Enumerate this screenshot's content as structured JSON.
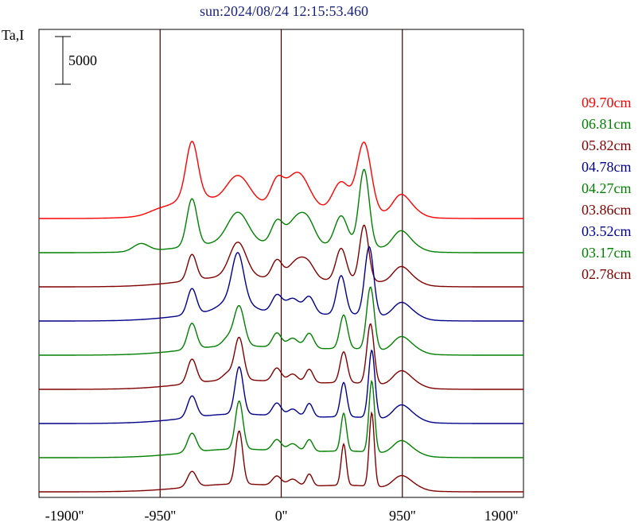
{
  "chart_data": {
    "type": "line",
    "title": "sun:2024/08/24 12:15:53.460",
    "ylabel": "Ta,I",
    "scale_bar_label": "5000",
    "x_tick_labels": [
      "-1900''",
      "-950''",
      "0''",
      "950''",
      "1900''"
    ],
    "x_ticks": [
      -1900,
      -950,
      0,
      950,
      1900
    ],
    "xlim": [
      -1900,
      1900
    ],
    "vertical_lines": [
      -950,
      0,
      950
    ],
    "grid": false,
    "legend_position": "right",
    "scale_bar_value": 5000,
    "series": [
      {
        "name": "09.70cm",
        "color": "#ff0000",
        "baseline": 2800,
        "features": [
          [
            -700,
            6000,
            45
          ],
          [
            -350,
            1800,
            380
          ],
          [
            -700,
            1800,
            110
          ],
          [
            -950,
            600,
            90
          ],
          [
            -340,
            3200,
            90
          ],
          [
            -34,
            2700,
            50
          ],
          [
            130,
            4300,
            90
          ],
          [
            470,
            3400,
            65
          ],
          [
            650,
            8100,
            55
          ],
          [
            930,
            1700,
            60
          ],
          [
            1000,
            1100,
            80
          ],
          [
            550,
            700,
            300
          ]
        ]
      },
      {
        "name": "06.81cm",
        "color": "#008000",
        "baseline": 2800,
        "features": [
          [
            -700,
            5500,
            40
          ],
          [
            -350,
            1200,
            380
          ],
          [
            -1100,
            900,
            60
          ],
          [
            -340,
            3500,
            80
          ],
          [
            -34,
            2500,
            45
          ],
          [
            130,
            3300,
            80
          ],
          [
            220,
            1500,
            55
          ],
          [
            470,
            3500,
            50
          ],
          [
            650,
            9000,
            40
          ],
          [
            930,
            1600,
            60
          ],
          [
            1000,
            900,
            80
          ],
          [
            550,
            700,
            300
          ]
        ]
      },
      {
        "name": "05.82cm",
        "color": "#800000",
        "baseline": 2800,
        "features": [
          [
            -700,
            3000,
            35
          ],
          [
            -350,
            1200,
            380
          ],
          [
            -340,
            4000,
            65
          ],
          [
            -34,
            2100,
            40
          ],
          [
            130,
            2300,
            70
          ],
          [
            220,
            1200,
            50
          ],
          [
            470,
            3700,
            40
          ],
          [
            650,
            6500,
            35
          ],
          [
            930,
            1400,
            60
          ],
          [
            1000,
            900,
            80
          ],
          [
            550,
            700,
            300
          ]
        ]
      },
      {
        "name": "04.78cm",
        "color": "#00008b",
        "baseline": 2800,
        "features": [
          [
            -700,
            3000,
            35
          ],
          [
            -350,
            1200,
            380
          ],
          [
            -340,
            5200,
            45
          ],
          [
            -360,
            1600,
            100
          ],
          [
            -34,
            2000,
            40
          ],
          [
            90,
            1800,
            55
          ],
          [
            220,
            2000,
            40
          ],
          [
            470,
            4500,
            35
          ],
          [
            690,
            8000,
            35
          ],
          [
            930,
            1200,
            60
          ],
          [
            1000,
            900,
            80
          ],
          [
            550,
            700,
            300
          ]
        ]
      },
      {
        "name": "04.27cm",
        "color": "#008000",
        "baseline": 2800,
        "features": [
          [
            -700,
            3000,
            35
          ],
          [
            -350,
            1100,
            380
          ],
          [
            -330,
            4600,
            40
          ],
          [
            -420,
            900,
            40
          ],
          [
            -34,
            1700,
            35
          ],
          [
            90,
            1200,
            45
          ],
          [
            220,
            1800,
            35
          ],
          [
            490,
            3900,
            30
          ],
          [
            700,
            7300,
            30
          ],
          [
            930,
            1200,
            60
          ],
          [
            1000,
            900,
            80
          ],
          [
            550,
            700,
            300
          ]
        ]
      },
      {
        "name": "03.86cm",
        "color": "#800000",
        "baseline": 2800,
        "features": [
          [
            -700,
            2800,
            35
          ],
          [
            -350,
            1100,
            380
          ],
          [
            -330,
            4900,
            35
          ],
          [
            -420,
            800,
            40
          ],
          [
            -34,
            1600,
            35
          ],
          [
            90,
            1000,
            40
          ],
          [
            220,
            1600,
            30
          ],
          [
            490,
            3600,
            28
          ],
          [
            700,
            7000,
            28
          ],
          [
            930,
            1200,
            60
          ],
          [
            1000,
            900,
            80
          ],
          [
            550,
            700,
            300
          ]
        ]
      },
      {
        "name": "03.52cm",
        "color": "#00008b",
        "baseline": 2800,
        "features": [
          [
            -700,
            2500,
            35
          ],
          [
            -350,
            1100,
            380
          ],
          [
            -330,
            5500,
            32
          ],
          [
            -34,
            1500,
            35
          ],
          [
            90,
            900,
            40
          ],
          [
            220,
            1600,
            28
          ],
          [
            490,
            4000,
            25
          ],
          [
            710,
            7900,
            25
          ],
          [
            930,
            1200,
            60
          ],
          [
            1000,
            900,
            80
          ],
          [
            550,
            700,
            300
          ]
        ]
      },
      {
        "name": "03.17cm",
        "color": "#008000",
        "baseline": 2800,
        "features": [
          [
            -700,
            2200,
            35
          ],
          [
            -350,
            1000,
            380
          ],
          [
            -330,
            5600,
            30
          ],
          [
            -34,
            1300,
            35
          ],
          [
            90,
            900,
            40
          ],
          [
            220,
            1400,
            28
          ],
          [
            490,
            4400,
            22
          ],
          [
            710,
            8300,
            22
          ],
          [
            930,
            1100,
            60
          ],
          [
            1000,
            800,
            80
          ],
          [
            550,
            700,
            300
          ]
        ]
      },
      {
        "name": "02.78cm",
        "color": "#800000",
        "baseline": 2800,
        "features": [
          [
            -700,
            1800,
            35
          ],
          [
            -350,
            900,
            380
          ],
          [
            -330,
            6200,
            28
          ],
          [
            -34,
            1100,
            35
          ],
          [
            90,
            800,
            40
          ],
          [
            220,
            1400,
            25
          ],
          [
            490,
            4800,
            20
          ],
          [
            710,
            8600,
            20
          ],
          [
            930,
            1000,
            60
          ],
          [
            1000,
            800,
            80
          ],
          [
            550,
            700,
            300
          ]
        ]
      }
    ]
  }
}
